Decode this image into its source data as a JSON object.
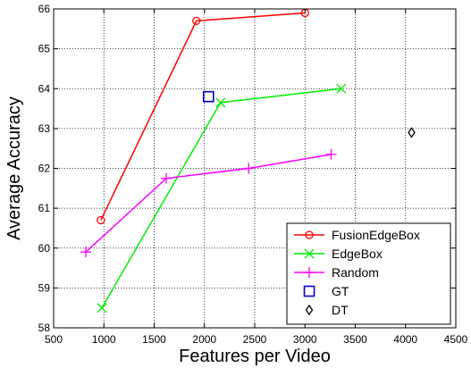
{
  "chart_data": {
    "type": "line",
    "xlabel": "Features per Video",
    "ylabel": "Average Accuracy",
    "xlim": [
      500,
      4500
    ],
    "ylim": [
      58,
      66
    ],
    "xticks": [
      500,
      1000,
      1500,
      2000,
      2500,
      3000,
      3500,
      4000,
      4500
    ],
    "yticks": [
      58,
      59,
      60,
      61,
      62,
      63,
      64,
      65,
      66
    ],
    "grid": true,
    "grid_style": "dotted",
    "legend_position": "bottom-right",
    "series": [
      {
        "name": "FusionEdgeBox",
        "color": "#ff0000",
        "marker": "circle",
        "line": true,
        "points": [
          [
            970,
            60.7
          ],
          [
            1920,
            65.7
          ],
          [
            3000,
            65.9
          ]
        ]
      },
      {
        "name": "EdgeBox",
        "color": "#00ee00",
        "marker": "x",
        "line": true,
        "points": [
          [
            980,
            58.5
          ],
          [
            2160,
            63.65
          ],
          [
            3360,
            64.0
          ]
        ]
      },
      {
        "name": "Random",
        "color": "#ff00ff",
        "marker": "plus",
        "line": true,
        "points": [
          [
            820,
            59.9
          ],
          [
            1620,
            61.75
          ],
          [
            2440,
            62.0
          ],
          [
            3260,
            62.35
          ]
        ]
      },
      {
        "name": "GT",
        "color": "#0000cc",
        "marker": "square",
        "line": false,
        "points": [
          [
            2040,
            63.8
          ]
        ]
      },
      {
        "name": "DT",
        "color": "#000000",
        "marker": "diamond",
        "line": false,
        "points": [
          [
            4060,
            62.9
          ]
        ]
      }
    ]
  }
}
